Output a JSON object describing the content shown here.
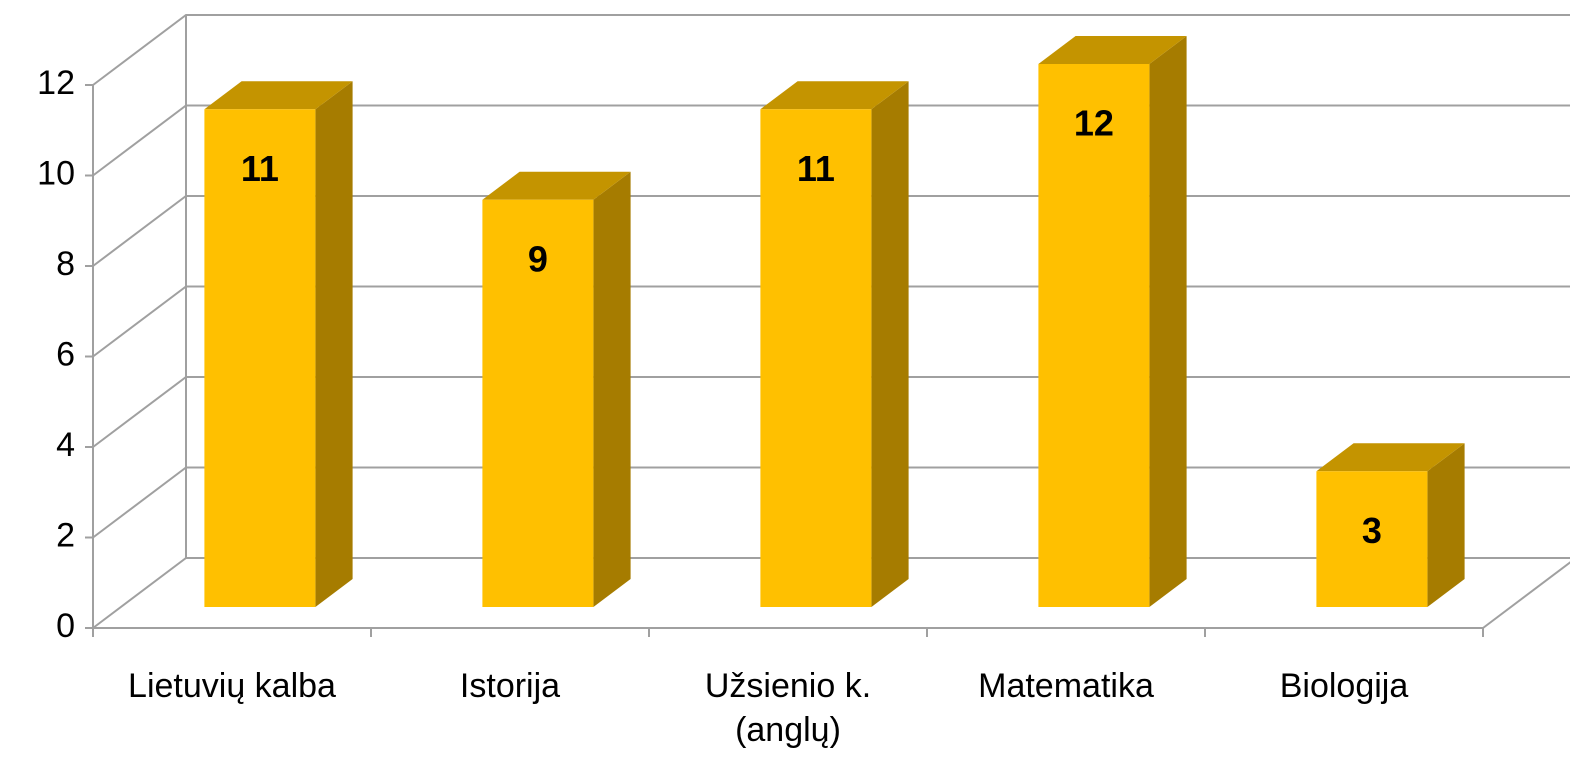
{
  "chart_data": {
    "type": "bar3d",
    "categories": [
      "Lietuvių kalba",
      "Istorija",
      "Užsienio k. (anglų)",
      "Matematika",
      "Biologija"
    ],
    "values": [
      11,
      9,
      11,
      12,
      3
    ],
    "color": "#ffc000",
    "ylim": [
      0,
      12
    ],
    "yticks": [
      0,
      2,
      4,
      6,
      8,
      10,
      12
    ],
    "grid": true
  }
}
